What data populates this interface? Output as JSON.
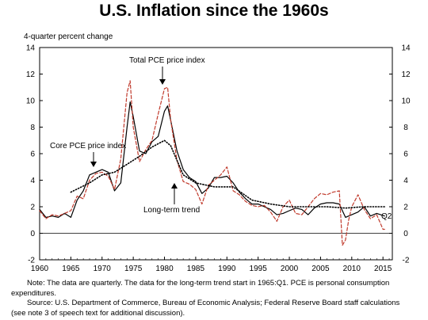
{
  "chart_data": {
    "type": "line",
    "title": "U.S. Inflation since the 1960s",
    "ylabel": "4-quarter percent change",
    "xlim": [
      1960,
      2016.5
    ],
    "ylim": [
      -2,
      14
    ],
    "x_ticks": [
      1960,
      1965,
      1970,
      1975,
      1980,
      1985,
      1990,
      1995,
      2000,
      2005,
      2010,
      2015
    ],
    "y_ticks": [
      -2,
      0,
      2,
      4,
      6,
      8,
      10,
      12,
      14
    ],
    "grid": false,
    "annotations": {
      "total": "Total PCE price index",
      "core": "Core PCE price index",
      "trend": "Long-term trend",
      "q2": "Q2"
    },
    "series": [
      {
        "name": "Core PCE price index",
        "color": "#000000",
        "style": "solid",
        "x": [
          1960,
          1961,
          1962,
          1963,
          1964,
          1965,
          1966,
          1967,
          1968,
          1969,
          1970,
          1971,
          1972,
          1973,
          1974,
          1974.5,
          1975,
          1976,
          1977,
          1978,
          1979,
          1980,
          1980.5,
          1981,
          1982,
          1983,
          1984,
          1985,
          1986,
          1987,
          1988,
          1989,
          1990,
          1991,
          1992,
          1993,
          1994,
          1995,
          1996,
          1997,
          1998,
          1999,
          2000,
          2001,
          2002,
          2003,
          2004,
          2005,
          2006,
          2007,
          2008,
          2009,
          2010,
          2011,
          2012,
          2013,
          2014,
          2015.25
        ],
        "values": [
          1.8,
          1.2,
          1.3,
          1.2,
          1.5,
          1.2,
          2.5,
          3.2,
          4.4,
          4.6,
          4.8,
          4.6,
          3.2,
          3.8,
          8.0,
          9.9,
          8.8,
          6.2,
          6.0,
          6.9,
          7.3,
          9.2,
          9.6,
          8.5,
          6.2,
          4.8,
          4.2,
          3.9,
          3.0,
          3.4,
          4.2,
          4.2,
          4.3,
          3.8,
          3.1,
          2.6,
          2.2,
          2.2,
          2.0,
          1.8,
          1.4,
          1.5,
          1.7,
          1.9,
          1.8,
          1.4,
          1.9,
          2.2,
          2.3,
          2.3,
          2.2,
          1.2,
          1.4,
          1.6,
          2.0,
          1.3,
          1.5,
          1.3
        ]
      },
      {
        "name": "Total PCE price index",
        "color": "#c0392b",
        "style": "dashed",
        "x": [
          1960,
          1961,
          1962,
          1963,
          1964,
          1965,
          1966,
          1967,
          1968,
          1969,
          1970,
          1971,
          1972,
          1973,
          1974,
          1974.5,
          1975,
          1976,
          1977,
          1978,
          1979,
          1980,
          1980.5,
          1981,
          1982,
          1983,
          1984,
          1985,
          1986,
          1987,
          1988,
          1989,
          1990,
          1991,
          1992,
          1993,
          1994,
          1995,
          1996,
          1997,
          1998,
          1999,
          2000,
          2001,
          2002,
          2003,
          2004,
          2005,
          2006,
          2007,
          2008,
          2008.5,
          2009,
          2009.5,
          2010,
          2011,
          2012,
          2013,
          2014,
          2015,
          2015.25
        ],
        "values": [
          1.7,
          1.1,
          1.4,
          1.3,
          1.5,
          1.7,
          2.8,
          2.6,
          4.0,
          4.5,
          4.6,
          4.3,
          3.3,
          5.6,
          10.6,
          11.5,
          8.0,
          5.4,
          6.3,
          7.0,
          9.0,
          10.9,
          11.0,
          8.5,
          5.5,
          3.9,
          3.7,
          3.3,
          2.2,
          3.6,
          4.0,
          4.4,
          5.0,
          3.2,
          2.9,
          2.4,
          2.1,
          2.0,
          2.1,
          1.6,
          0.9,
          2.0,
          2.5,
          1.5,
          1.4,
          2.0,
          2.6,
          3.0,
          2.9,
          3.1,
          3.2,
          -0.9,
          -0.5,
          1.0,
          2.0,
          2.9,
          1.8,
          1.1,
          1.4,
          0.3,
          0.3
        ]
      },
      {
        "name": "Long-term trend",
        "color": "#000000",
        "style": "dotted",
        "x": [
          1965,
          1968,
          1970,
          1972,
          1974,
          1976,
          1978,
          1980,
          1981,
          1983,
          1985,
          1988,
          1991,
          1994,
          1997,
          2000,
          2003,
          2006,
          2009,
          2012,
          2015.25
        ],
        "values": [
          3.1,
          3.8,
          4.4,
          4.6,
          5.2,
          5.8,
          6.5,
          7.0,
          6.6,
          4.4,
          3.8,
          3.5,
          3.5,
          2.5,
          2.2,
          2.0,
          2.0,
          2.0,
          1.9,
          2.0,
          2.0
        ]
      }
    ]
  },
  "notes": {
    "note": "Note:  The data are quarterly.  The data for the long-term trend start in 1965:Q1.  PCE is personal consumption expenditures.",
    "source": "Source:  U.S. Department of Commerce, Bureau of Economic Analysis; Federal Reserve Board staff calculations (see note 3 of speech text for additional discussion)."
  }
}
